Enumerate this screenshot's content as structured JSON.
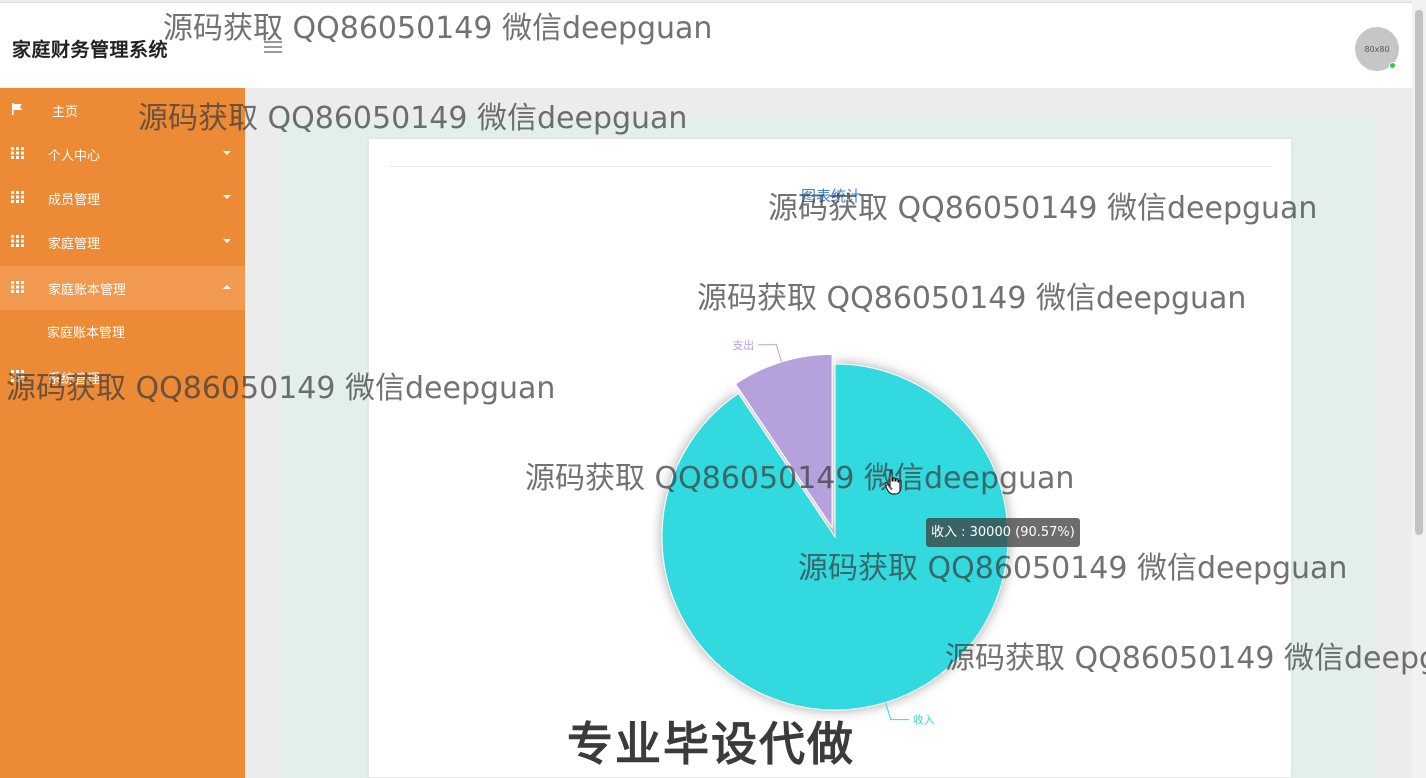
{
  "app": {
    "title": "家庭财务管理系统",
    "avatar_text": "80x80"
  },
  "sidebar": {
    "items": [
      {
        "label": "主页",
        "icon": "flag-icon"
      },
      {
        "label": "个人中心",
        "icon": "grid-icon"
      },
      {
        "label": "成员管理",
        "icon": "grid-icon"
      },
      {
        "label": "家庭管理",
        "icon": "grid-icon"
      },
      {
        "label": "家庭账本管理",
        "icon": "grid-icon",
        "expanded": true
      },
      {
        "label": "系统管理",
        "icon": "grid-icon"
      }
    ],
    "sub_items": [
      {
        "label": "家庭账本管理"
      }
    ],
    "accent": "#ed8a36",
    "active_bg": "#f19a4f"
  },
  "main": {
    "card_title": "图表统计"
  },
  "chart_data": {
    "type": "pie",
    "slices": [
      {
        "label": "收入",
        "value": 30000,
        "percent": 90.57,
        "color": "#31d9df",
        "emphasized": true
      },
      {
        "label": "支出",
        "value": 3124,
        "percent": 9.43,
        "color": "#b5a1dc"
      }
    ],
    "tooltip": "收入 : 30000 (90.57%)"
  },
  "watermarks": [
    "源码获取 QQ86050149 微信deepguan",
    "源码获取 QQ86050149 微信deepguan",
    "源码获取 QQ86050149 微信deepguan",
    "源码获取 QQ86050149 微信deepguan",
    "源码获取 QQ86050149 微信deepguan",
    "源码获取 QQ86050149 微信deepguan",
    "源码获取 QQ86050149 微信deepguan",
    "源码获取 QQ86050149 微信deepg"
  ],
  "banner": "专业毕设代做"
}
